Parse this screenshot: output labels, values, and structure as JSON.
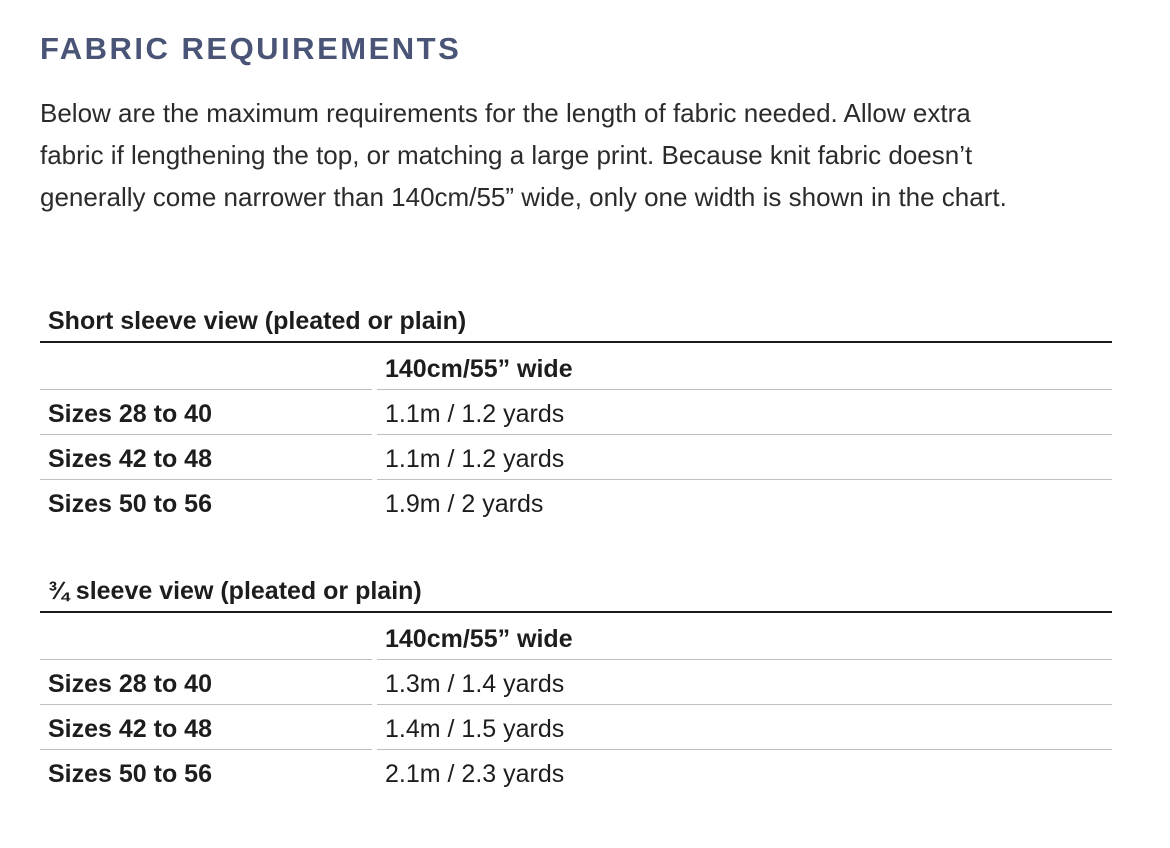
{
  "title": "FABRIC REQUIREMENTS",
  "intro_lines": [
    "Below are the maximum requirements for the length of fabric needed. Allow extra",
    "fabric if lengthening the top, or matching a large print. Because knit fabric doesn’t",
    "generally come narrower than 140cm/55” wide, only one width is shown in the chart."
  ],
  "tables": [
    {
      "title": "Short sleeve view (pleated or plain)",
      "column_header": "140cm/55” wide",
      "rows": [
        {
          "label": "Sizes 28 to 40",
          "value": "1.1m / 1.2 yards"
        },
        {
          "label": "Sizes 42 to 48",
          "value": "1.1m / 1.2 yards"
        },
        {
          "label": "Sizes 50 to 56",
          "value": "1.9m / 2 yards"
        }
      ]
    },
    {
      "title": "¾ sleeve view (pleated or plain)",
      "column_header": "140cm/55” wide",
      "rows": [
        {
          "label": "Sizes 28 to 40",
          "value": "1.3m / 1.4 yards"
        },
        {
          "label": "Sizes 42 to 48",
          "value": "1.4m / 1.5 yards"
        },
        {
          "label": "Sizes 50 to 56",
          "value": "2.1m / 2.3 yards"
        }
      ]
    }
  ],
  "colors": {
    "heading": "#4a5476",
    "body_text": "#2b2b2b",
    "table_text": "#1d1d1d",
    "rule_dark": "#1a1a1a",
    "rule_light": "#bfbfbf"
  }
}
